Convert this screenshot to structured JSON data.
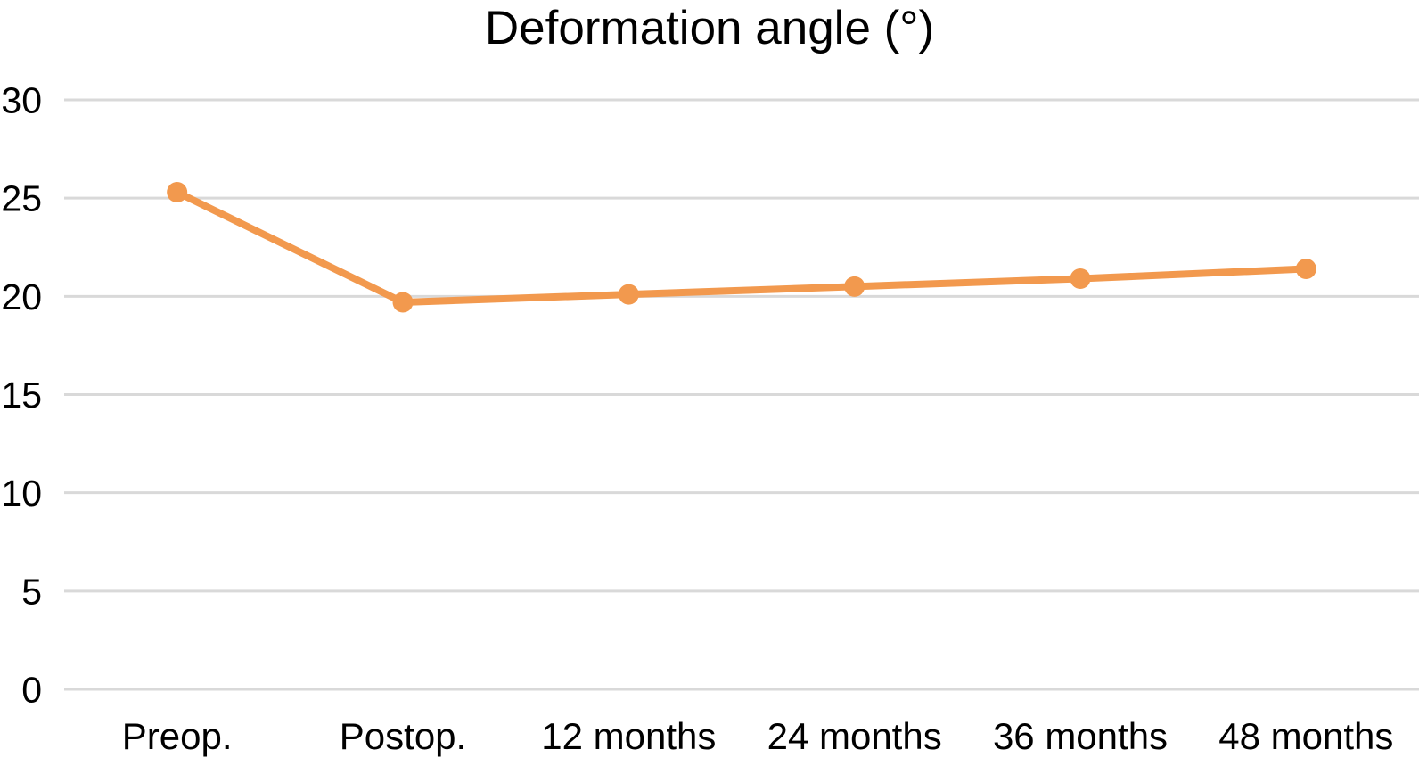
{
  "chart_data": {
    "type": "line",
    "title": "Deformation angle (°)",
    "categories": [
      "Preop.",
      "Postop.",
      "12 months",
      "24 months",
      "36 months",
      "48 months"
    ],
    "series": [
      {
        "name": "Deformation angle",
        "values": [
          25.3,
          19.7,
          20.1,
          20.5,
          20.9,
          21.4
        ]
      }
    ],
    "xlabel": "",
    "ylabel": "",
    "ylim": [
      0,
      30
    ],
    "yticks": [
      0,
      5,
      10,
      15,
      20,
      25,
      30
    ],
    "grid": true,
    "legend": "none",
    "colors": {
      "line": "#F2994E",
      "marker": "#F2994E",
      "gridline": "#D9D9D9",
      "text": "#000000",
      "background": "#FFFFFF"
    }
  }
}
